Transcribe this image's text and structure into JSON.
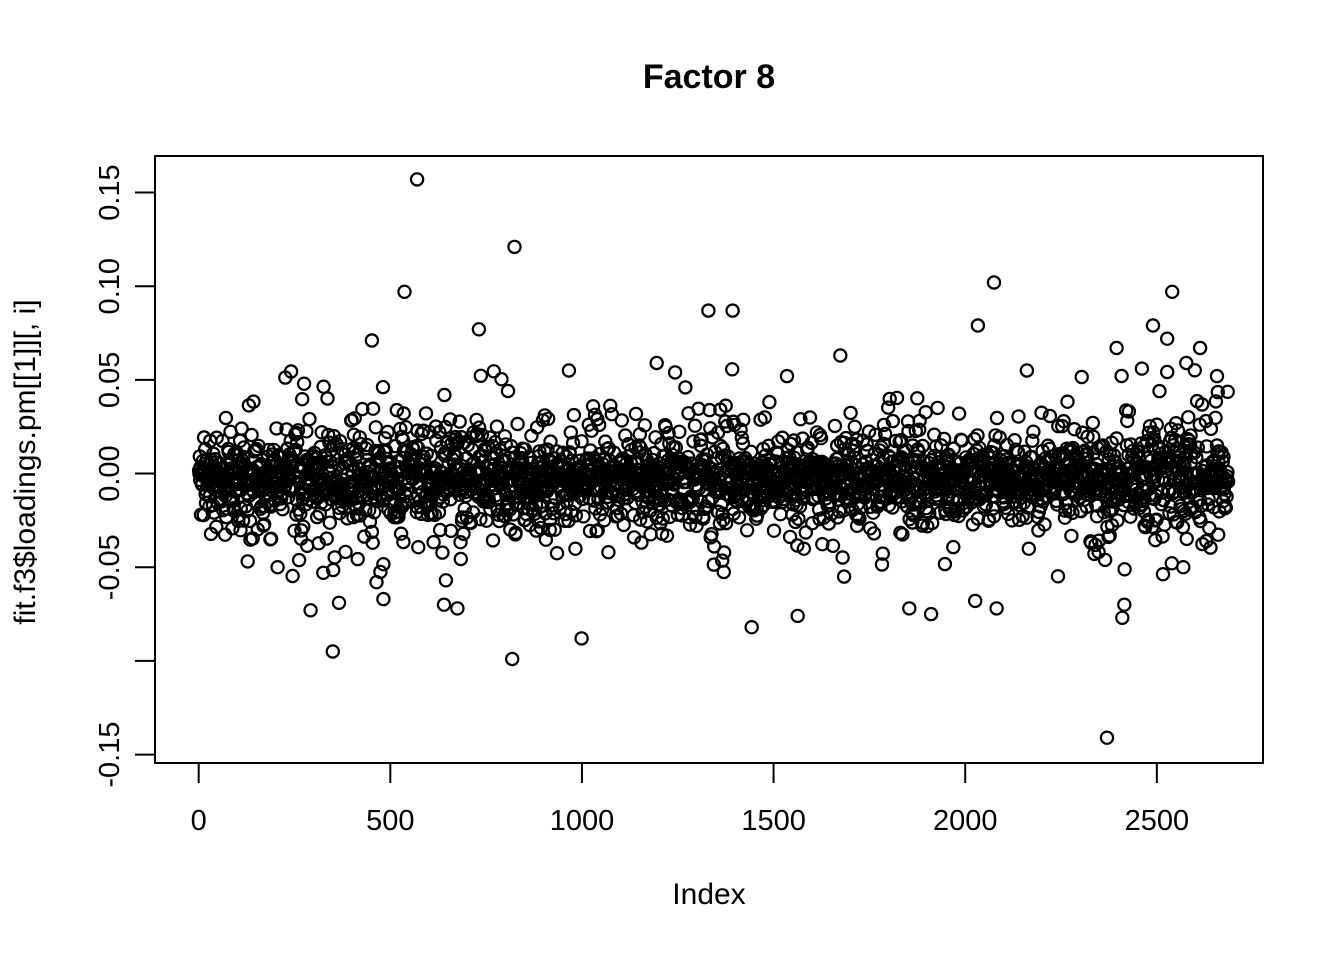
{
  "page": {
    "background": "#ffffff",
    "foreground": "#000000"
  },
  "chart": {
    "title": "Factor 8",
    "xlabel": "Index",
    "ylabel": "fit.f3$loadings.pm[[1]][, i]"
  },
  "chart_data": {
    "type": "scatter",
    "title": "Factor 8",
    "xlabel": "Index",
    "ylabel": "fit.f3$loadings.pm[[1]][, i]",
    "n_points": 2686,
    "x_is_index": true,
    "x_range": [
      1,
      2686
    ],
    "xlim": [
      -114,
      2777
    ],
    "ylim": [
      -0.1545,
      0.1695
    ],
    "grid": false,
    "legend": null,
    "x_ticks": [
      {
        "value": 0,
        "label": "0"
      },
      {
        "value": 500,
        "label": "500"
      },
      {
        "value": 1000,
        "label": "1000"
      },
      {
        "value": 1500,
        "label": "1500"
      },
      {
        "value": 2000,
        "label": "2000"
      },
      {
        "value": 2500,
        "label": "2500"
      }
    ],
    "y_ticks": [
      {
        "value": 0.15,
        "label": "0.15"
      },
      {
        "value": 0.1,
        "label": "0.10"
      },
      {
        "value": 0.05,
        "label": "0.05"
      },
      {
        "value": 0.0,
        "label": "0.00"
      },
      {
        "value": -0.05,
        "label": "-0.05"
      },
      {
        "value": -0.1,
        "label": ""
      },
      {
        "value": -0.15,
        "label": "-0.15"
      }
    ],
    "marker": {
      "shape": "open-circle",
      "radius_px": 6.1,
      "stroke_px": 2.2,
      "color": "#000000"
    },
    "summary": {
      "description": "Dense band of factor loadings centered near 0 (approx. +/-0.03) across all 2686 indices, with sparse outliers; max approx 0.157 near index 570, min approx -0.141 near index 2370; spread widens near the right end (index > 2300).",
      "y_min": -0.141,
      "y_max": 0.157
    },
    "distribution": {
      "seed": 814204,
      "mean": -0.002,
      "negative_skew": 1.08,
      "clip_abs": 0.056,
      "mixture": [
        {
          "weight": 0.6,
          "sd": 0.0085
        },
        {
          "weight": 0.28,
          "sd": 0.016
        },
        {
          "weight": 0.1,
          "sd": 0.025
        },
        {
          "weight": 0.02,
          "sd": 0.036
        }
      ],
      "segments": [
        {
          "from": 1,
          "to": 250,
          "sd_mul": 0.95
        },
        {
          "from": 250,
          "to": 760,
          "sd_mul": 1.15
        },
        {
          "from": 760,
          "to": 1150,
          "sd_mul": 1.0
        },
        {
          "from": 1150,
          "to": 1420,
          "sd_mul": 1.1
        },
        {
          "from": 1420,
          "to": 1900,
          "sd_mul": 0.95
        },
        {
          "from": 1900,
          "to": 2300,
          "sd_mul": 0.9
        },
        {
          "from": 2300,
          "to": 2686,
          "sd_mul": 1.3
        }
      ]
    },
    "outliers": [
      [
        570,
        0.157
      ],
      [
        824,
        0.121
      ],
      [
        537,
        0.097
      ],
      [
        452,
        0.071
      ],
      [
        731,
        0.077
      ],
      [
        966,
        0.055
      ],
      [
        1195,
        0.059
      ],
      [
        1243,
        0.054
      ],
      [
        1270,
        0.046
      ],
      [
        1330,
        0.087
      ],
      [
        1393,
        0.087
      ],
      [
        1535,
        0.052
      ],
      [
        1674,
        0.063
      ],
      [
        2033,
        0.079
      ],
      [
        2075,
        0.102
      ],
      [
        2161,
        0.055
      ],
      [
        2395,
        0.067
      ],
      [
        2461,
        0.056
      ],
      [
        2490,
        0.079
      ],
      [
        2527,
        0.072
      ],
      [
        2540,
        0.097
      ],
      [
        2577,
        0.059
      ],
      [
        2613,
        0.067
      ],
      [
        2657,
        0.052
      ],
      [
        206,
        -0.05
      ],
      [
        292,
        -0.073
      ],
      [
        350,
        -0.095
      ],
      [
        366,
        -0.069
      ],
      [
        464,
        -0.058
      ],
      [
        482,
        -0.067
      ],
      [
        640,
        -0.07
      ],
      [
        645,
        -0.057
      ],
      [
        675,
        -0.072
      ],
      [
        818,
        -0.099
      ],
      [
        999,
        -0.088
      ],
      [
        1443,
        -0.082
      ],
      [
        1563,
        -0.076
      ],
      [
        1684,
        -0.055
      ],
      [
        1854,
        -0.072
      ],
      [
        1911,
        -0.075
      ],
      [
        2026,
        -0.068
      ],
      [
        2082,
        -0.072
      ],
      [
        2370,
        -0.141
      ],
      [
        2410,
        -0.077
      ],
      [
        2415,
        -0.07
      ]
    ]
  }
}
